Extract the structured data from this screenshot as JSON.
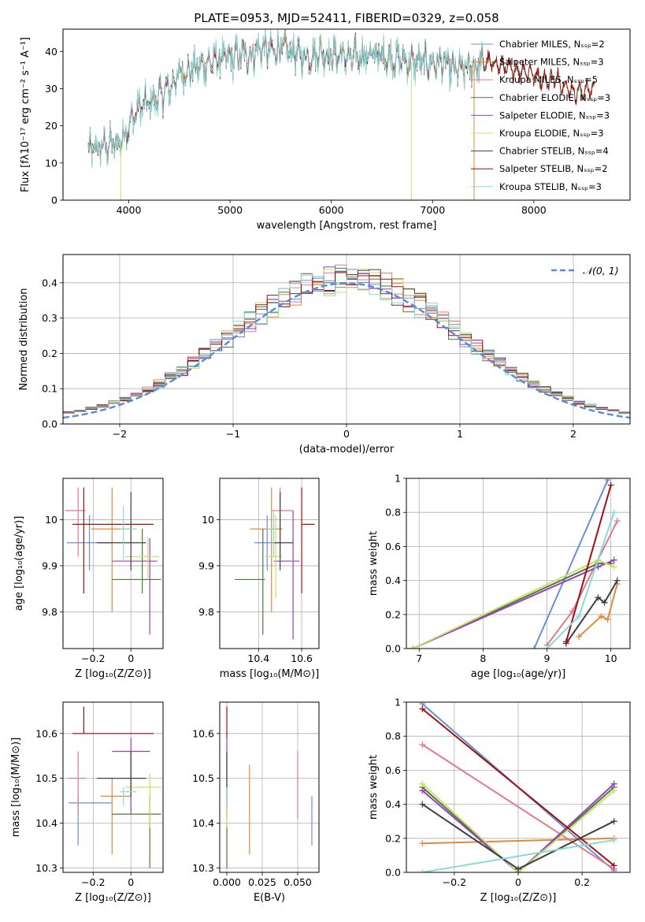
{
  "palette": {
    "s0": "#6a8fd4",
    "s1": "#e08a3c",
    "s2": "#e07a8c",
    "s3": "#4a7a3a",
    "s4": "#9b3fbf",
    "s5": "#c9e06b",
    "s6": "#404040",
    "s7": "#a01010",
    "s8": "#88dada",
    "norm": "#5b8ad6"
  },
  "chart_data": [
    {
      "id": "spectrum",
      "type": "line",
      "title": "PLATE=0953, MJD=52411, FIBERID=0329, z=0.058",
      "xlabel": "wavelength [Angstrom, rest frame]",
      "ylabel": "Flux [fλ10⁻¹⁷ erg cm⁻² s⁻¹ A⁻¹]",
      "xlim": [
        3350,
        8950
      ],
      "ylim": [
        0,
        46
      ],
      "xticks": [
        4000,
        5000,
        6000,
        7000,
        8000
      ],
      "yticks": [
        0,
        10,
        20,
        30,
        40
      ],
      "legend_position": "top-right",
      "legend": [
        "Chabrier MILES, Nₛₛₚ=2",
        "Salpeter MILES, Nₛₛₚ=3",
        "Kroupa MILES, Nₛₛₚ=5",
        "Chabrier ELODIE, Nₛₛₚ=3",
        "Salpeter ELODIE, Nₛₛₚ=3",
        "Kroupa ELODIE, Nₛₛₚ=3",
        "Chabrier STELIB, Nₛₛₚ=4",
        "Salpeter STELIB, Nₛₛₚ=2",
        "Kroupa STELIB, Nₛₛₚ=3"
      ],
      "continuum": {
        "x": [
          3600,
          3700,
          3800,
          3900,
          4000,
          4100,
          4200,
          4300,
          4400,
          4500,
          4600,
          4700,
          4800,
          4900,
          5000,
          5100,
          5200,
          5300,
          5400,
          5500,
          5600,
          5700,
          5800,
          5900,
          6000,
          6100,
          6200,
          6300,
          6400,
          6500,
          6600,
          6700,
          6800,
          6900,
          7000,
          7100,
          7200,
          7300,
          7400,
          7500,
          7600,
          7700,
          7800,
          7900,
          8000,
          8100,
          8200,
          8300,
          8400,
          8600
        ],
        "y": [
          13,
          14,
          15,
          15,
          20,
          25,
          26,
          28,
          30,
          34,
          35,
          36,
          37,
          38,
          38,
          39,
          39,
          41,
          40,
          41,
          40,
          39,
          39,
          40,
          39,
          39,
          38,
          39,
          39,
          39,
          38,
          38,
          37,
          37,
          37,
          37,
          35,
          35,
          36,
          37,
          37,
          36,
          35,
          35,
          34,
          32,
          33,
          31,
          29,
          30
        ]
      },
      "spikes": [
        {
          "x": 3920,
          "y": 0
        },
        {
          "x": 6790,
          "y": 0
        },
        {
          "x": 7410,
          "y": 0
        }
      ]
    },
    {
      "id": "residuals",
      "type": "histogram",
      "xlabel": "(data-model)/error",
      "ylabel": "Normed distribution",
      "xlim": [
        -2.5,
        2.5
      ],
      "ylim": [
        0,
        0.48
      ],
      "xticks": [
        -2,
        -1,
        0,
        1,
        2
      ],
      "yticks": [
        0.0,
        0.1,
        0.2,
        0.3,
        0.4
      ],
      "grid": true,
      "legend_position": "top-right",
      "legend": [
        "𝒩(0, 1)"
      ],
      "bin_width": 0.1,
      "bin_start": -2.5
    },
    {
      "id": "age_vs_Z",
      "type": "errorbar",
      "xlabel": "Z [log₁₀(Z/Z⊙)]",
      "ylabel": "age  [log₁₀(age/yr)]",
      "xlim": [
        -0.36,
        0.17
      ],
      "ylim": [
        9.72,
        10.09
      ],
      "xticks": [
        -0.2,
        0.0
      ],
      "yticks": [
        9.8,
        9.9,
        10.0
      ],
      "grid": true,
      "points": [
        {
          "s": 0,
          "x": -0.22,
          "y": 9.95,
          "xe": [
            -0.34,
            -0.1
          ],
          "ye": [
            9.89,
            10.01
          ]
        },
        {
          "s": 1,
          "x": -0.1,
          "y": 9.98,
          "xe": [
            -0.21,
            0.0
          ],
          "ye": [
            9.8,
            10.07
          ]
        },
        {
          "s": 2,
          "x": -0.28,
          "y": 10.02,
          "xe": [
            -0.35,
            -0.24
          ],
          "ye": [
            9.92,
            10.07
          ]
        },
        {
          "s": 3,
          "x": 0.06,
          "y": 9.87,
          "xe": [
            -0.1,
            0.16
          ],
          "ye": [
            9.84,
            9.98
          ]
        },
        {
          "s": 4,
          "x": 0.1,
          "y": 9.91,
          "xe": [
            -0.1,
            0.14
          ],
          "ye": [
            9.75,
            9.96
          ]
        },
        {
          "s": 5,
          "x": 0.09,
          "y": 9.92,
          "xe": [
            -0.03,
            0.15
          ],
          "ye": [
            9.87,
            9.96
          ]
        },
        {
          "s": 6,
          "x": 0.0,
          "y": 9.95,
          "xe": [
            -0.18,
            0.08
          ],
          "ye": [
            9.89,
            10.06
          ]
        },
        {
          "s": 7,
          "x": -0.25,
          "y": 9.99,
          "xe": [
            -0.31,
            0.12
          ],
          "ye": [
            9.84,
            10.07
          ]
        },
        {
          "s": 8,
          "x": -0.04,
          "y": 9.98,
          "xe": [
            -0.06,
            0.03
          ],
          "ye": [
            9.91,
            10.03
          ]
        }
      ]
    },
    {
      "id": "age_vs_mass",
      "type": "errorbar",
      "xlabel": "mass [log₁₀(M/M⊙)]",
      "ylabel": "",
      "xlim": [
        10.22,
        10.68
      ],
      "ylim": [
        9.72,
        10.09
      ],
      "xticks": [
        10.4,
        10.6
      ],
      "yticks": [
        9.8,
        9.9,
        10.0
      ],
      "grid": true,
      "points": [
        {
          "s": 0,
          "x": 10.44,
          "y": 9.95,
          "xe": [
            10.38,
            10.47
          ],
          "ye": [
            9.89,
            10.01
          ]
        },
        {
          "s": 1,
          "x": 10.46,
          "y": 9.98,
          "xe": [
            10.36,
            10.51
          ],
          "ye": [
            9.8,
            10.07
          ]
        },
        {
          "s": 2,
          "x": 10.5,
          "y": 10.02,
          "xe": [
            10.46,
            10.56
          ],
          "ye": [
            9.92,
            10.07
          ]
        },
        {
          "s": 3,
          "x": 10.42,
          "y": 9.87,
          "xe": [
            10.29,
            10.43
          ],
          "ye": [
            9.75,
            9.98
          ]
        },
        {
          "s": 4,
          "x": 10.56,
          "y": 9.91,
          "xe": [
            10.47,
            10.59
          ],
          "ye": [
            9.74,
            10.02
          ]
        },
        {
          "s": 5,
          "x": 10.48,
          "y": 9.92,
          "xe": [
            10.43,
            10.51
          ],
          "ye": [
            9.83,
            10.01
          ]
        },
        {
          "s": 6,
          "x": 10.5,
          "y": 9.95,
          "xe": [
            10.47,
            10.56
          ],
          "ye": [
            9.89,
            10.06
          ]
        },
        {
          "s": 7,
          "x": 10.6,
          "y": 9.99,
          "xe": [
            10.6,
            10.66
          ],
          "ye": [
            9.84,
            10.07
          ]
        },
        {
          "s": 8,
          "x": 10.47,
          "y": 9.98,
          "xe": [
            10.44,
            10.48
          ],
          "ye": [
            9.92,
            10.02
          ]
        }
      ]
    },
    {
      "id": "mw_vs_age",
      "type": "line",
      "xlabel": "age  [log₁₀(age/yr)]",
      "ylabel": "mass weight",
      "xlim": [
        6.8,
        10.3
      ],
      "ylim": [
        0,
        1.0
      ],
      "xticks": [
        7,
        8,
        9,
        10
      ],
      "yticks": [
        0.0,
        0.2,
        0.4,
        0.6,
        0.8,
        1.0
      ],
      "grid": true,
      "series": [
        {
          "s": 0,
          "x": [
            8.8,
            9.95
          ],
          "y": [
            0.0,
            0.99
          ]
        },
        {
          "s": 1,
          "x": [
            9.5,
            9.85,
            9.95,
            10.1
          ],
          "y": [
            0.07,
            0.19,
            0.17,
            0.38
          ]
        },
        {
          "s": 2,
          "x": [
            9.0,
            9.4,
            10.1
          ],
          "y": [
            0.02,
            0.22,
            0.75
          ]
        },
        {
          "s": 3,
          "x": [
            6.9,
            9.8,
            10.0
          ],
          "y": [
            0.0,
            0.5,
            0.5
          ]
        },
        {
          "s": 4,
          "x": [
            6.9,
            9.8,
            10.05
          ],
          "y": [
            0.0,
            0.48,
            0.52
          ]
        },
        {
          "s": 5,
          "x": [
            6.9,
            9.8,
            10.05
          ],
          "y": [
            0.0,
            0.52,
            0.48
          ]
        },
        {
          "s": 6,
          "x": [
            9.3,
            9.8,
            9.9,
            10.1
          ],
          "y": [
            0.03,
            0.3,
            0.27,
            0.4
          ]
        },
        {
          "s": 7,
          "x": [
            9.3,
            10.0
          ],
          "y": [
            0.04,
            0.96
          ]
        },
        {
          "s": 8,
          "x": [
            9.0,
            9.5,
            10.05
          ],
          "y": [
            0.0,
            0.19,
            0.8
          ]
        }
      ]
    },
    {
      "id": "mass_vs_Z",
      "type": "errorbar",
      "xlabel": "Z [log₁₀(Z/Z⊙)]",
      "ylabel": "mass [log₁₀(M/M⊙)]",
      "xlim": [
        -0.36,
        0.17
      ],
      "ylim": [
        10.29,
        10.67
      ],
      "xticks": [
        -0.2,
        0.0
      ],
      "yticks": [
        10.3,
        10.4,
        10.5,
        10.6
      ],
      "grid": true,
      "points": [
        {
          "s": 0,
          "x": -0.28,
          "y": 10.445,
          "xe": [
            -0.33,
            -0.1
          ],
          "ye": [
            10.35,
            10.46
          ]
        },
        {
          "s": 1,
          "x": -0.1,
          "y": 10.46,
          "xe": [
            -0.16,
            0.0
          ],
          "ye": [
            10.33,
            10.5
          ]
        },
        {
          "s": 2,
          "x": -0.28,
          "y": 10.5,
          "xe": [
            -0.33,
            -0.24
          ],
          "ye": [
            10.42,
            10.56
          ]
        },
        {
          "s": 3,
          "x": 0.1,
          "y": 10.42,
          "xe": [
            -0.1,
            0.16
          ],
          "ye": [
            10.3,
            10.46
          ]
        },
        {
          "s": 4,
          "x": 0.0,
          "y": 10.56,
          "xe": [
            -0.1,
            0.1
          ],
          "ye": [
            10.42,
            10.59
          ]
        },
        {
          "s": 5,
          "x": 0.1,
          "y": 10.48,
          "xe": [
            -0.03,
            0.16
          ],
          "ye": [
            10.39,
            10.51
          ]
        },
        {
          "s": 6,
          "x": 0.0,
          "y": 10.5,
          "xe": [
            -0.18,
            0.08
          ],
          "ye": [
            10.46,
            10.56
          ]
        },
        {
          "s": 7,
          "x": -0.25,
          "y": 10.6,
          "xe": [
            -0.31,
            0.12
          ],
          "ye": [
            10.6,
            10.66
          ]
        },
        {
          "s": 8,
          "x": -0.04,
          "y": 10.47,
          "xe": [
            -0.06,
            0.03
          ],
          "ye": [
            10.44,
            10.48
          ]
        }
      ]
    },
    {
      "id": "mass_vs_ebv",
      "type": "errorbar",
      "xlabel": "E(B-V)",
      "ylabel": "",
      "xlim": [
        -0.005,
        0.065
      ],
      "ylim": [
        10.29,
        10.67
      ],
      "xticks": [
        0.0,
        0.025,
        0.05
      ],
      "xticklabels": [
        "0.000",
        "0.025",
        "0.050"
      ],
      "yticks": [
        10.3,
        10.4,
        10.5,
        10.6
      ],
      "grid": true,
      "points": [
        {
          "s": 0,
          "x": 0.06,
          "ye": [
            10.35,
            10.46
          ]
        },
        {
          "s": 1,
          "x": 0.016,
          "ye": [
            10.33,
            10.53
          ]
        },
        {
          "s": 2,
          "x": 0.05,
          "ye": [
            10.41,
            10.56
          ]
        },
        {
          "s": 3,
          "x": 0.0,
          "ye": [
            10.3,
            10.46
          ]
        },
        {
          "s": 4,
          "x": 0.0,
          "ye": [
            10.42,
            10.59
          ]
        },
        {
          "s": 5,
          "x": 0.0,
          "ye": [
            10.39,
            10.51
          ]
        },
        {
          "s": 6,
          "x": 0.0,
          "ye": [
            10.46,
            10.56
          ]
        },
        {
          "s": 7,
          "x": 0.0,
          "ye": [
            10.59,
            10.66
          ]
        },
        {
          "s": 8,
          "x": 0.0,
          "ye": [
            10.44,
            10.48
          ]
        }
      ]
    },
    {
      "id": "mw_vs_Z",
      "type": "line",
      "xlabel": "Z [log₁₀(Z/Z⊙)]",
      "ylabel": "mass weight",
      "xlim": [
        -0.35,
        0.35
      ],
      "ylim": [
        0,
        1.0
      ],
      "xticks": [
        -0.2,
        0.0,
        0.2
      ],
      "yticks": [
        0.0,
        0.2,
        0.4,
        0.6,
        0.8,
        1.0
      ],
      "grid": true,
      "series": [
        {
          "s": 0,
          "x": [
            -0.3,
            0.3
          ],
          "y": [
            0.99,
            0.01
          ]
        },
        {
          "s": 1,
          "x": [
            -0.3,
            0.3
          ],
          "y": [
            0.17,
            0.2
          ]
        },
        {
          "s": 2,
          "x": [
            -0.3,
            0.3
          ],
          "y": [
            0.75,
            0.02
          ]
        },
        {
          "s": 3,
          "x": [
            -0.3,
            0.0,
            0.3
          ],
          "y": [
            0.5,
            0.0,
            0.5
          ]
        },
        {
          "s": 4,
          "x": [
            -0.3,
            0.0,
            0.3
          ],
          "y": [
            0.48,
            0.0,
            0.52
          ]
        },
        {
          "s": 5,
          "x": [
            -0.3,
            0.0,
            0.3
          ],
          "y": [
            0.52,
            0.0,
            0.48
          ]
        },
        {
          "s": 6,
          "x": [
            -0.3,
            0.0,
            0.3
          ],
          "y": [
            0.4,
            0.02,
            0.3
          ]
        },
        {
          "s": 7,
          "x": [
            -0.3,
            0.3
          ],
          "y": [
            0.96,
            0.04
          ]
        },
        {
          "s": 8,
          "x": [
            -0.3,
            0.3
          ],
          "y": [
            0.0,
            0.19
          ]
        }
      ]
    }
  ]
}
